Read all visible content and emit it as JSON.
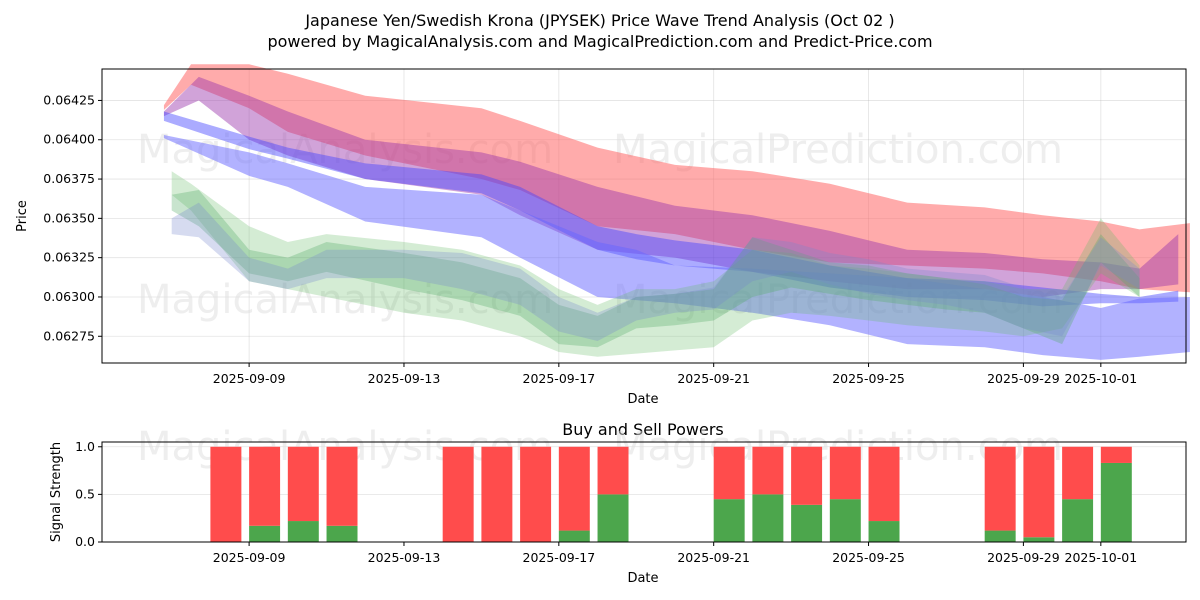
{
  "chart_data": [
    {
      "type": "area",
      "title": "Japanese Yen/Swedish Krona (JPYSEK) Price Wave Trend Analysis (Oct 02 )",
      "subtitle": "powered by MagicalAnalysis.com and MagicalPrediction.com and Predict-Price.com",
      "xlabel": "Date",
      "ylabel": "Price",
      "ylim": [
        0.06258,
        0.06445
      ],
      "xlim": [
        "2025-09-06",
        "2025-10-03"
      ],
      "grid": true,
      "yticks": [
        "0.06275",
        "0.06300",
        "0.06325",
        "0.06350",
        "0.06375",
        "0.06400",
        "0.06425"
      ],
      "xticks": [
        "2025-09-09",
        "2025-09-13",
        "2025-09-17",
        "2025-09-21",
        "2025-09-25",
        "2025-09-29",
        "2025-10-01"
      ],
      "watermarks": [
        "MagicalAnalysis.com",
        "MagicalPrediction.com"
      ],
      "bands": [
        {
          "name": "red-upper-band",
          "color": "#ff6666",
          "opacity": 0.55,
          "x": [
            -2.2,
            -1.5,
            0,
            1,
            3,
            6,
            7,
            9,
            11,
            13,
            15,
            17,
            19,
            20.5,
            22,
            23,
            24.3
          ],
          "upper": [
            0.06422,
            0.06448,
            0.06448,
            0.06442,
            0.06428,
            0.0642,
            0.06412,
            0.06395,
            0.06384,
            0.0638,
            0.06372,
            0.0636,
            0.06357,
            0.06352,
            0.06348,
            0.06343,
            0.06347
          ],
          "lower": [
            0.06419,
            0.06435,
            0.0642,
            0.06405,
            0.0639,
            0.06375,
            0.06368,
            0.06345,
            0.0634,
            0.0633,
            0.06322,
            0.0632,
            0.06318,
            0.06315,
            0.0631,
            0.06305,
            0.06303
          ]
        },
        {
          "name": "purple-band",
          "color": "#9933aa",
          "opacity": 0.45,
          "x": [
            -2.2,
            -1.3,
            0,
            1,
            3,
            6,
            7,
            9,
            11,
            13,
            15,
            17,
            19,
            20.5,
            22,
            23,
            24.0
          ],
          "upper": [
            0.06418,
            0.0644,
            0.06428,
            0.06418,
            0.064,
            0.06392,
            0.06386,
            0.0637,
            0.06358,
            0.06352,
            0.06342,
            0.0633,
            0.06328,
            0.06324,
            0.06322,
            0.06318,
            0.0634
          ],
          "lower": [
            0.06415,
            0.06425,
            0.064,
            0.0639,
            0.06375,
            0.06365,
            0.06352,
            0.0633,
            0.06325,
            0.06316,
            0.0631,
            0.06305,
            0.06305,
            0.063,
            0.06305,
            0.06305,
            0.06308
          ]
        },
        {
          "name": "blue-upper-band",
          "color": "#4444ff",
          "opacity": 0.45,
          "x": [
            -2.2,
            0,
            1,
            3,
            6,
            7,
            9,
            10,
            11,
            13,
            15,
            17,
            19,
            20.5,
            22,
            23,
            24.0
          ],
          "upper": [
            0.06418,
            0.06402,
            0.06395,
            0.06385,
            0.06378,
            0.0637,
            0.06345,
            0.0634,
            0.06336,
            0.0633,
            0.0632,
            0.06312,
            0.0631,
            0.06306,
            0.06302,
            0.063,
            0.06304
          ],
          "lower": [
            0.06412,
            0.06394,
            0.06388,
            0.06375,
            0.06366,
            0.06355,
            0.0633,
            0.06324,
            0.0632,
            0.06316,
            0.06306,
            0.063,
            0.06298,
            0.06294,
            0.06296,
            0.06296,
            0.06297
          ]
        },
        {
          "name": "blue-lower-band",
          "color": "#6666ff",
          "opacity": 0.5,
          "x": [
            -2.2,
            0,
            1,
            3,
            6,
            7,
            9,
            10,
            11,
            13,
            15,
            17,
            19,
            20.5,
            22,
            23,
            24.3
          ],
          "upper": [
            0.06403,
            0.06392,
            0.06385,
            0.0637,
            0.06365,
            0.06355,
            0.06335,
            0.0633,
            0.0632,
            0.06318,
            0.06315,
            0.06312,
            0.06305,
            0.063,
            0.06293,
            0.06299,
            0.063
          ],
          "lower": [
            0.06401,
            0.06377,
            0.0637,
            0.06348,
            0.06338,
            0.06325,
            0.063,
            0.06298,
            0.06296,
            0.0629,
            0.06282,
            0.0627,
            0.06268,
            0.06263,
            0.0626,
            0.06262,
            0.06265
          ]
        },
        {
          "name": "green-wave-band-1",
          "color": "#66bb66",
          "opacity": 0.28,
          "x": [
            -2.0,
            -1.5,
            0,
            1,
            2,
            4,
            5.5,
            7,
            8,
            9,
            10,
            11,
            12,
            13,
            14,
            15,
            16,
            17,
            18,
            19,
            20,
            21,
            22,
            23
          ],
          "upper": [
            0.0638,
            0.06372,
            0.06345,
            0.06335,
            0.0634,
            0.06335,
            0.0633,
            0.0632,
            0.06305,
            0.06295,
            0.06305,
            0.06305,
            0.0631,
            0.0633,
            0.06328,
            0.0632,
            0.06318,
            0.06315,
            0.06312,
            0.0631,
            0.06305,
            0.06305,
            0.0635,
            0.0632
          ],
          "lower": [
            0.06365,
            0.06355,
            0.0631,
            0.06305,
            0.063,
            0.0629,
            0.06285,
            0.06275,
            0.06265,
            0.06262,
            0.06264,
            0.06266,
            0.06268,
            0.06285,
            0.0629,
            0.06288,
            0.06285,
            0.06282,
            0.0628,
            0.06278,
            0.06275,
            0.0628,
            0.06315,
            0.063
          ]
        },
        {
          "name": "green-wave-band-2",
          "color": "#55aa66",
          "opacity": 0.32,
          "x": [
            -2.0,
            -1.3,
            0,
            1,
            2,
            4,
            5.5,
            7,
            8,
            9,
            10,
            11,
            12,
            13,
            14,
            15,
            16,
            17,
            18,
            19,
            20,
            21,
            22,
            23
          ],
          "upper": [
            0.06365,
            0.06368,
            0.0633,
            0.06325,
            0.06335,
            0.06328,
            0.06322,
            0.06312,
            0.06295,
            0.06288,
            0.063,
            0.06302,
            0.06305,
            0.06338,
            0.0633,
            0.06322,
            0.0632,
            0.06315,
            0.06312,
            0.06308,
            0.063,
            0.06298,
            0.0634,
            0.06312
          ],
          "lower": [
            0.06355,
            0.06345,
            0.06315,
            0.0631,
            0.06316,
            0.06305,
            0.06298,
            0.06288,
            0.0627,
            0.06268,
            0.0628,
            0.06282,
            0.06285,
            0.063,
            0.06306,
            0.06302,
            0.06298,
            0.06295,
            0.06292,
            0.0629,
            0.0628,
            0.0627,
            0.06322,
            0.063
          ]
        },
        {
          "name": "blue-wave-band",
          "color": "#7788cc",
          "opacity": 0.3,
          "x": [
            -2.0,
            -1.3,
            0,
            1,
            2,
            4,
            5.5,
            7,
            8,
            9,
            10,
            11,
            12,
            13,
            14,
            15,
            16,
            17,
            18,
            19,
            20,
            21,
            22,
            23
          ],
          "upper": [
            0.0635,
            0.0636,
            0.06325,
            0.06318,
            0.0633,
            0.0633,
            0.06328,
            0.06318,
            0.063,
            0.0629,
            0.063,
            0.06302,
            0.06306,
            0.06338,
            0.06335,
            0.06328,
            0.06324,
            0.06318,
            0.06316,
            0.06314,
            0.06306,
            0.063,
            0.06338,
            0.06318
          ],
          "lower": [
            0.0634,
            0.06338,
            0.0631,
            0.06305,
            0.06312,
            0.06312,
            0.06305,
            0.06295,
            0.06278,
            0.06272,
            0.06285,
            0.0629,
            0.06292,
            0.0631,
            0.06316,
            0.06308,
            0.06302,
            0.06298,
            0.06295,
            0.0629,
            0.0628,
            0.06275,
            0.0632,
            0.06305
          ]
        }
      ]
    },
    {
      "type": "bar",
      "title": "Buy and Sell Powers",
      "xlabel": "Date",
      "ylabel": "Signal Strength",
      "ylim": [
        0,
        1.05
      ],
      "yticks": [
        "0.0",
        "0.5",
        "1.0"
      ],
      "xticks": [
        "2025-09-09",
        "2025-09-13",
        "2025-09-17",
        "2025-09-21",
        "2025-09-25",
        "2025-09-29",
        "2025-10-01"
      ],
      "colors": {
        "buy": "#4ca64c",
        "sell": "#ff4c4c"
      },
      "categories": [
        "2025-09-08",
        "2025-09-09",
        "2025-09-10",
        "2025-09-11",
        "2025-09-14",
        "2025-09-15",
        "2025-09-16",
        "2025-09-17",
        "2025-09-18",
        "2025-09-21",
        "2025-09-22",
        "2025-09-23",
        "2025-09-24",
        "2025-09-25",
        "2025-09-28",
        "2025-09-29",
        "2025-09-30",
        "2025-10-01"
      ],
      "day_index": [
        -1,
        0,
        1,
        2,
        5,
        6,
        7,
        8,
        9,
        12,
        13,
        14,
        15,
        16,
        19,
        20,
        21,
        22
      ],
      "series": [
        {
          "name": "Buy",
          "values": [
            0.0,
            0.17,
            0.22,
            0.17,
            0.0,
            0.0,
            0.0,
            0.12,
            0.5,
            0.45,
            0.5,
            0.39,
            0.45,
            0.22,
            0.12,
            0.05,
            0.45,
            0.83
          ]
        },
        {
          "name": "Sell",
          "values": [
            1.0,
            0.83,
            0.78,
            0.83,
            1.0,
            1.0,
            1.0,
            0.88,
            0.5,
            0.55,
            0.5,
            0.61,
            0.55,
            0.78,
            0.88,
            0.95,
            0.55,
            0.17
          ]
        }
      ]
    }
  ]
}
